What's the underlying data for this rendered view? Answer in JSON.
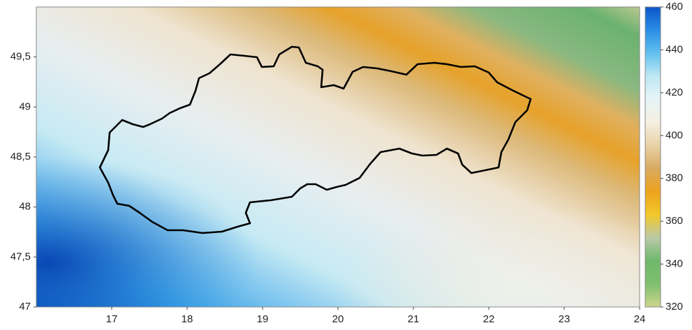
{
  "chart_data": {
    "type": "map",
    "xlim": [
      16,
      24
    ],
    "xticks": [
      17,
      18,
      19,
      20,
      21,
      22,
      23,
      24
    ],
    "ylim": [
      47,
      50
    ],
    "yticks": [
      47,
      {
        "value": 47.5,
        "label": "47,5"
      },
      48,
      {
        "value": 48.5,
        "label": "48,5"
      },
      49,
      {
        "value": 49.5,
        "label": "49,5"
      }
    ],
    "colorbar": {
      "lim": [
        320,
        460
      ],
      "ticks": [
        320,
        340,
        360,
        380,
        400,
        420,
        440,
        460
      ],
      "colors": [
        "#ccd68c",
        "#7fbf6e",
        "#6fb86c",
        "#b9c9a8",
        "#f2c82a",
        "#eda21e",
        "#d8aa60",
        "#e8d2a6",
        "#f6efe2",
        "#e6f4f6",
        "#bfe8f4",
        "#62c0ee",
        "#2a8ee6",
        "#0b55c8"
      ]
    }
  }
}
